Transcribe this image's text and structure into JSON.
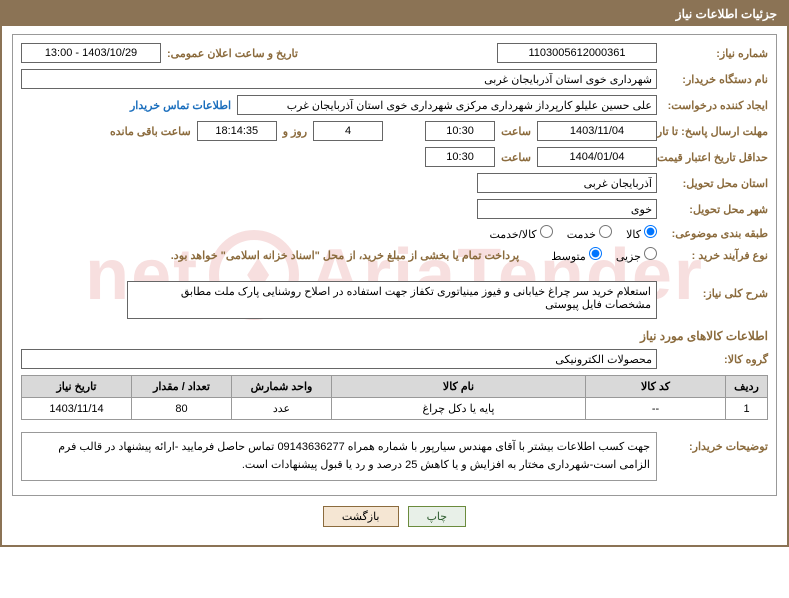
{
  "header_title": "جزئیات اطلاعات نیاز",
  "need_number_label": "شماره نیاز:",
  "need_number": "1103005612000361",
  "announce_label": "تاریخ و ساعت اعلان عمومی:",
  "announce_value": "1403/10/29 - 13:00",
  "buyer_org_label": "نام دستگاه خریدار:",
  "buyer_org": "شهرداری خوی استان آذربایجان غربی",
  "requester_label": "ایجاد کننده درخواست:",
  "requester": "علی حسین علیلو کارپرداز شهرداری مرکزی شهرداری خوی استان آذربایجان غرب",
  "contact_link": "اطلاعات تماس خریدار",
  "deadline_label": "مهلت ارسال پاسخ: تا تاریخ:",
  "deadline_date": "1403/11/04",
  "time_label": "ساعت",
  "deadline_time": "10:30",
  "days_label": "روز و",
  "days_value": "4",
  "remaining_time": "18:14:35",
  "remaining_label": "ساعت باقی مانده",
  "validity_label": "حداقل تاریخ اعتبار قیمت: تا تاریخ:",
  "validity_date": "1404/01/04",
  "validity_time": "10:30",
  "delivery_province_label": "استان محل تحویل:",
  "delivery_province": "آذربایجان غربی",
  "delivery_city_label": "شهر محل تحویل:",
  "delivery_city": "خوی",
  "category_label": "طبقه بندی موضوعی:",
  "cat_options": {
    "goods": "کالا",
    "service": "خدمت",
    "goods_service": "کالا/خدمت"
  },
  "purchase_type_label": "نوع فرآیند خرید :",
  "pt_options": {
    "partial": "جزیی",
    "medium": "متوسط"
  },
  "purchase_note": "پرداخت تمام یا بخشی از مبلغ خرید، از محل \"اسناد خزانه اسلامی\" خواهد بود.",
  "need_summary_label": "شرح کلی نیاز:",
  "need_summary": "استعلام خرید سر چراغ خیابانی و فیوز مینیاتوری تکفاز جهت استفاده در اصلاح روشنایی پارک ملت مطابق مشخصات فایل پیوستی",
  "goods_section_title": "اطلاعات کالاهای مورد نیاز",
  "goods_group_label": "گروه کالا:",
  "goods_group": "محصولات الکترونیکی",
  "table": {
    "headers": [
      "ردیف",
      "کد کالا",
      "نام کالا",
      "واحد شمارش",
      "تعداد / مقدار",
      "تاریخ نیاز"
    ],
    "col_widths": [
      "42px",
      "140px",
      "auto",
      "100px",
      "100px",
      "110px"
    ],
    "rows": [
      [
        "1",
        "--",
        "پایه یا دکل چراغ",
        "عدد",
        "80",
        "1403/11/14"
      ]
    ]
  },
  "buyer_notes_label": "توضیحات خریدار:",
  "buyer_notes": "جهت کسب اطلاعات بیشتر با آقای مهندس سیارپور با شماره همراه 09143636277 تماس حاصل فرمایید -ارائه پیشنهاد در قالب فرم الزامی است-شهرداری مختار به افزایش و یا کاهش 25 درصد و رد یا قبول پیشنهادات است.",
  "btn_print": "چاپ",
  "btn_back": "بازگشت",
  "watermark_text_1": "AriaTender",
  "watermark_text_2": "net",
  "colors": {
    "header_bg": "#8b7355",
    "label": "#8b6b3d",
    "link": "#1a6ebd",
    "border": "#999999",
    "th_bg": "#d9d9d9"
  }
}
